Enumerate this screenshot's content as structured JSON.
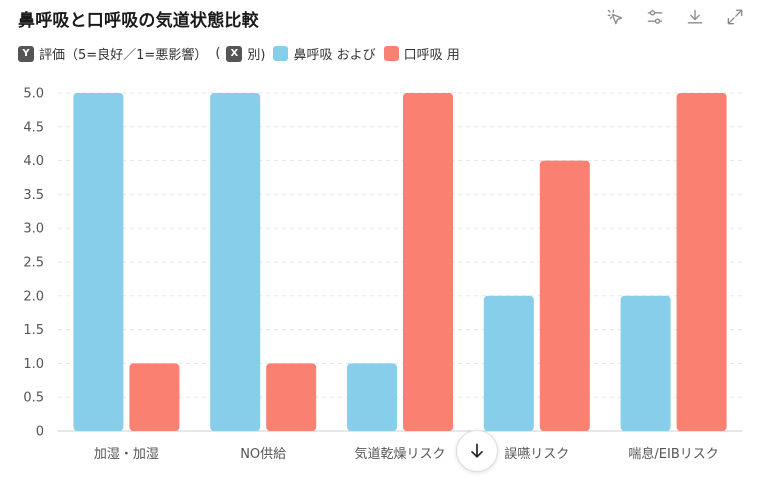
{
  "title": "鼻呼吸と口呼吸の気道状態比較",
  "toolbar": {
    "icons": [
      "cursor-select-icon",
      "sliders-icon",
      "download-icon",
      "expand-icon"
    ]
  },
  "legend": {
    "y_badge": "Y",
    "y_text": "評価（5=良好／1=悪影響）",
    "paren_open": "(",
    "x_badge": "X",
    "x_text": "別)",
    "series1": "鼻呼吸 および",
    "series2": "口呼吸 用"
  },
  "colors": {
    "nasal": "#87CEEB",
    "oral": "#FA8072",
    "grid": "#e6e6e6"
  },
  "chart_data": {
    "type": "bar",
    "categories": [
      "加湿・加湿",
      "NO供給",
      "気道乾燥リスク",
      "誤嚥リスク",
      "喘息/EIBリスク"
    ],
    "series": [
      {
        "name": "鼻呼吸 および",
        "values": [
          5,
          5,
          1,
          2,
          2
        ]
      },
      {
        "name": "口呼吸 用",
        "values": [
          1,
          1,
          5,
          4,
          5
        ]
      }
    ],
    "ylim": [
      0,
      5
    ],
    "yticks": [
      "0",
      "0.5",
      "1.0",
      "1.5",
      "2.0",
      "2.5",
      "3.0",
      "3.5",
      "4.0",
      "4.5",
      "5.0"
    ],
    "ylabel": "評価（5=良好／1=悪影響）",
    "grid": true,
    "legend_position": "top-left"
  }
}
